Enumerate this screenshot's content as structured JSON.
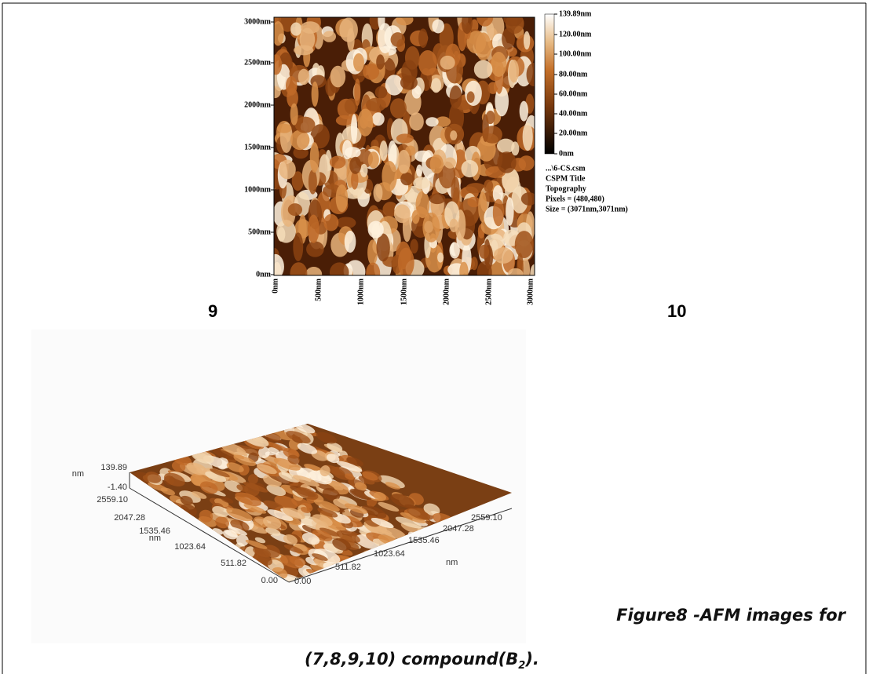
{
  "top_image": {
    "y_labels": [
      "3000nm",
      "2500nm",
      "2000nm",
      "1500nm",
      "1000nm",
      "500nm",
      "0nm"
    ],
    "x_labels": [
      "0nm",
      "500nm",
      "1000nm",
      "1500nm",
      "2000nm",
      "2500nm",
      "3000nm"
    ],
    "colorbar_labels": [
      "139.89nm",
      "120.00nm",
      "100.00nm",
      "80.00nm",
      "60.00nm",
      "40.00nm",
      "20.00nm",
      "0nm"
    ],
    "info": [
      "...\\6-CS.csm",
      "CSPM Title",
      "Topography",
      "Pixels = (480,480)",
      "Size = (3071nm,3071nm)"
    ]
  },
  "panel_labels": [
    "9",
    "10"
  ],
  "image_3d": {
    "z_unit": "nm",
    "z_max": "139.89",
    "z_min": "-1.40",
    "left_axis": [
      "2559.10",
      "2047.28",
      "1535.46",
      "1023.64",
      "511.82",
      "0.00"
    ],
    "left_unit": "nm",
    "right_axis": [
      "0.00",
      "511.82",
      "1023.64",
      "1535.46",
      "2047.28",
      "2559.10"
    ],
    "right_unit": "nm"
  },
  "caption": {
    "line1": "Figure8 -AFM images for",
    "line2_main": "(7,8,9,10) compound(B",
    "line2_sub": "2",
    "line2_end": ")."
  }
}
